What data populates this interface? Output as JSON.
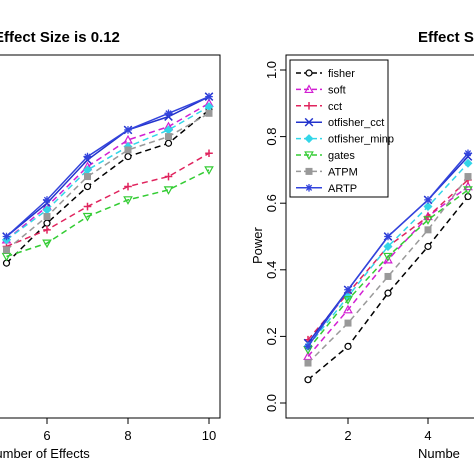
{
  "chart_data": [
    {
      "type": "line",
      "title": "Effect Size is 0.12",
      "xlabel": "Number of Effects",
      "ylabel": "",
      "xlim": [
        0,
        10
      ],
      "ylim": [
        0,
        1
      ],
      "xticks": [
        6,
        8,
        10
      ],
      "grid": false,
      "x": [
        5,
        6,
        7,
        8,
        9,
        10
      ],
      "series": [
        {
          "name": "fisher",
          "color": "#000000",
          "marker": "circle",
          "values": [
            0.42,
            0.54,
            0.65,
            0.74,
            0.78,
            0.88
          ]
        },
        {
          "name": "soft",
          "color": "#d21fd2",
          "marker": "triangle-up",
          "values": [
            0.49,
            0.59,
            0.71,
            0.79,
            0.83,
            0.9
          ]
        },
        {
          "name": "cct",
          "color": "#e0245e",
          "marker": "plus",
          "values": [
            0.47,
            0.52,
            0.59,
            0.65,
            0.68,
            0.75
          ]
        },
        {
          "name": "otfisher_cct",
          "color": "#2233cc",
          "marker": "cross",
          "values": [
            0.5,
            0.6,
            0.73,
            0.82,
            0.86,
            0.92
          ]
        },
        {
          "name": "otfisher_minp",
          "color": "#33d6e8",
          "marker": "diamond",
          "values": [
            0.49,
            0.58,
            0.7,
            0.77,
            0.82,
            0.89
          ]
        },
        {
          "name": "gates",
          "color": "#33cc33",
          "marker": "triangle-down",
          "values": [
            0.44,
            0.48,
            0.56,
            0.61,
            0.64,
            0.7
          ]
        },
        {
          "name": "ATPM",
          "color": "#999999",
          "marker": "square",
          "values": [
            0.46,
            0.56,
            0.68,
            0.76,
            0.8,
            0.87
          ]
        },
        {
          "name": "ARTP",
          "color": "#3344dd",
          "marker": "asterisk",
          "values": [
            0.5,
            0.61,
            0.74,
            0.82,
            0.87,
            0.92
          ]
        }
      ]
    },
    {
      "type": "line",
      "title": "Effect S",
      "xlabel": "Numbe",
      "ylabel": "Power",
      "xlim": [
        0.7,
        5.5
      ],
      "ylim": [
        0,
        1
      ],
      "xticks": [
        2,
        4
      ],
      "yticks": [
        0.0,
        0.2,
        0.4,
        0.6,
        0.8,
        1.0
      ],
      "ytick_labels": [
        "0.0",
        "0.2",
        "0.4",
        "0.6",
        "0.8",
        "1.0"
      ],
      "grid": false,
      "legend_position": "top-left",
      "x": [
        1,
        2,
        3,
        4,
        5
      ],
      "series": [
        {
          "name": "fisher",
          "color": "#000000",
          "marker": "circle",
          "values": [
            0.07,
            0.17,
            0.33,
            0.47,
            0.62
          ]
        },
        {
          "name": "soft",
          "color": "#d21fd2",
          "marker": "triangle-up",
          "values": [
            0.14,
            0.28,
            0.43,
            0.56,
            0.65
          ]
        },
        {
          "name": "cct",
          "color": "#e0245e",
          "marker": "plus",
          "values": [
            0.19,
            0.33,
            0.47,
            0.56,
            0.67
          ]
        },
        {
          "name": "otfisher_cct",
          "color": "#2233cc",
          "marker": "cross",
          "values": [
            0.18,
            0.34,
            0.5,
            0.61,
            0.74
          ]
        },
        {
          "name": "otfisher_minp",
          "color": "#33d6e8",
          "marker": "diamond",
          "values": [
            0.17,
            0.32,
            0.47,
            0.59,
            0.72
          ]
        },
        {
          "name": "gates",
          "color": "#33cc33",
          "marker": "triangle-down",
          "values": [
            0.16,
            0.31,
            0.44,
            0.55,
            0.64
          ]
        },
        {
          "name": "ATPM",
          "color": "#999999",
          "marker": "square",
          "values": [
            0.12,
            0.24,
            0.38,
            0.52,
            0.68
          ]
        },
        {
          "name": "ARTP",
          "color": "#3344dd",
          "marker": "asterisk",
          "values": [
            0.17,
            0.34,
            0.5,
            0.61,
            0.75
          ]
        }
      ]
    }
  ]
}
